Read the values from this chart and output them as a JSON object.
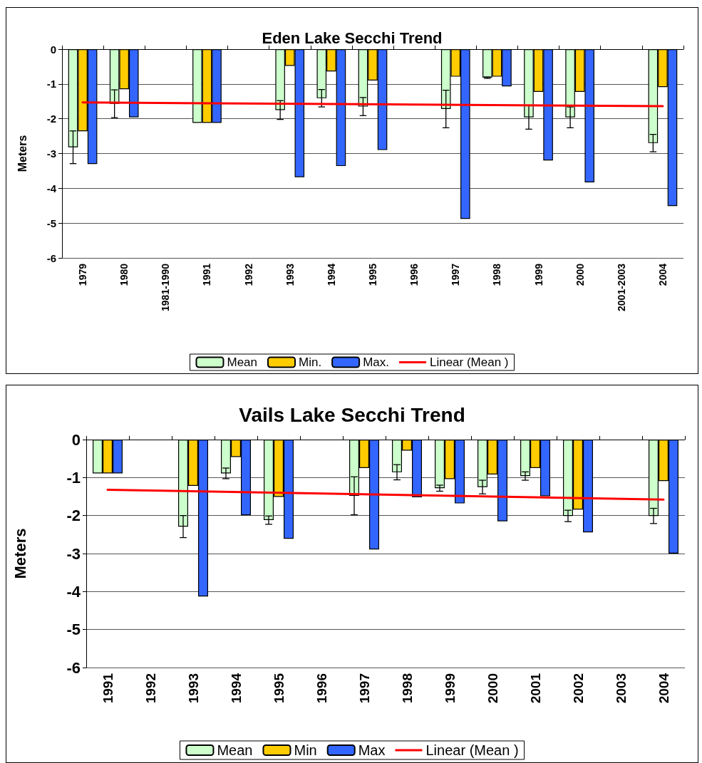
{
  "chart_data": [
    {
      "type": "bar",
      "title": "Eden Lake Secchi Trend",
      "ylabel": "Meters",
      "categories": [
        "1979",
        "1980",
        "1981-1990",
        "1991",
        "1992",
        "1993",
        "1994",
        "1995",
        "1996",
        "1997",
        "1998",
        "1999",
        "2000",
        "2001-2003",
        "2004"
      ],
      "series": [
        {
          "name": "Mean",
          "color": "#ccffcc",
          "values": [
            -2.82,
            -1.57,
            null,
            -2.12,
            null,
            -1.75,
            -1.41,
            -1.65,
            null,
            -1.72,
            -0.82,
            -1.96,
            -1.96,
            null,
            -2.7
          ],
          "errors": [
            0.47,
            0.4,
            null,
            null,
            null,
            0.27,
            0.25,
            0.26,
            null,
            0.54,
            0.02,
            0.34,
            0.3,
            null,
            0.25
          ]
        },
        {
          "name": "Min.",
          "color": "#ffcc00",
          "values": [
            -2.36,
            -1.15,
            null,
            -2.12,
            null,
            -0.48,
            -0.64,
            -0.9,
            null,
            -0.79,
            -0.79,
            -1.23,
            -1.23,
            null,
            -1.09
          ]
        },
        {
          "name": "Max.",
          "color": "#3366ff",
          "values": [
            -3.3,
            -1.96,
            null,
            -2.12,
            null,
            -3.68,
            -3.36,
            -2.9,
            null,
            -4.88,
            -1.07,
            -3.2,
            -3.83,
            null,
            -4.51
          ]
        },
        {
          "name": "Linear (Mean )",
          "type": "line",
          "color": "#ff0000",
          "values": [
            -1.53,
            null,
            null,
            null,
            null,
            null,
            null,
            null,
            null,
            null,
            null,
            null,
            null,
            null,
            -1.64
          ]
        }
      ],
      "ylim": [
        -6,
        0
      ],
      "yticks": [
        -6,
        -5,
        -4,
        -3,
        -2,
        -1,
        0
      ],
      "grid": "y",
      "legend": "bottom",
      "marker": "none"
    },
    {
      "type": "bar",
      "title": "Vails Lake Secchi Trend",
      "ylabel": "Meters",
      "categories": [
        "1991",
        "1992",
        "1993",
        "1994",
        "1995",
        "1996",
        "1997",
        "1998",
        "1999",
        "2000",
        "2001",
        "2002",
        "2003",
        "2004"
      ],
      "series": [
        {
          "name": "Mean",
          "color": "#ccffcc",
          "values": [
            -0.89,
            null,
            -2.29,
            -0.89,
            -2.12,
            null,
            -1.48,
            -0.86,
            -1.28,
            -1.25,
            -0.96,
            -2.01,
            null,
            -2.01
          ],
          "errors": [
            null,
            null,
            0.29,
            0.14,
            0.11,
            null,
            0.5,
            0.2,
            0.08,
            0.18,
            0.11,
            0.15,
            null,
            0.2
          ]
        },
        {
          "name": "Min",
          "color": "#ffcc00",
          "values": [
            -0.89,
            null,
            -1.22,
            -0.46,
            -1.51,
            null,
            -0.75,
            -0.29,
            -1.04,
            -0.92,
            -0.75,
            -1.84,
            null,
            -1.09
          ]
        },
        {
          "name": "Max",
          "color": "#3366ff",
          "values": [
            -0.89,
            null,
            -4.13,
            -1.99,
            -2.61,
            null,
            -2.89,
            -1.52,
            -1.68,
            -2.15,
            -1.49,
            -2.44,
            null,
            -3.0
          ]
        },
        {
          "name": "Linear (Mean )",
          "type": "line",
          "color": "#ff0000",
          "values": [
            -1.32,
            null,
            null,
            null,
            null,
            null,
            null,
            null,
            null,
            null,
            null,
            null,
            null,
            -1.58
          ]
        }
      ],
      "ylim": [
        -6,
        0
      ],
      "yticks": [
        -6,
        -5,
        -4,
        -3,
        -2,
        -1,
        0
      ],
      "grid": "y",
      "legend": "bottom",
      "marker": "none"
    }
  ]
}
